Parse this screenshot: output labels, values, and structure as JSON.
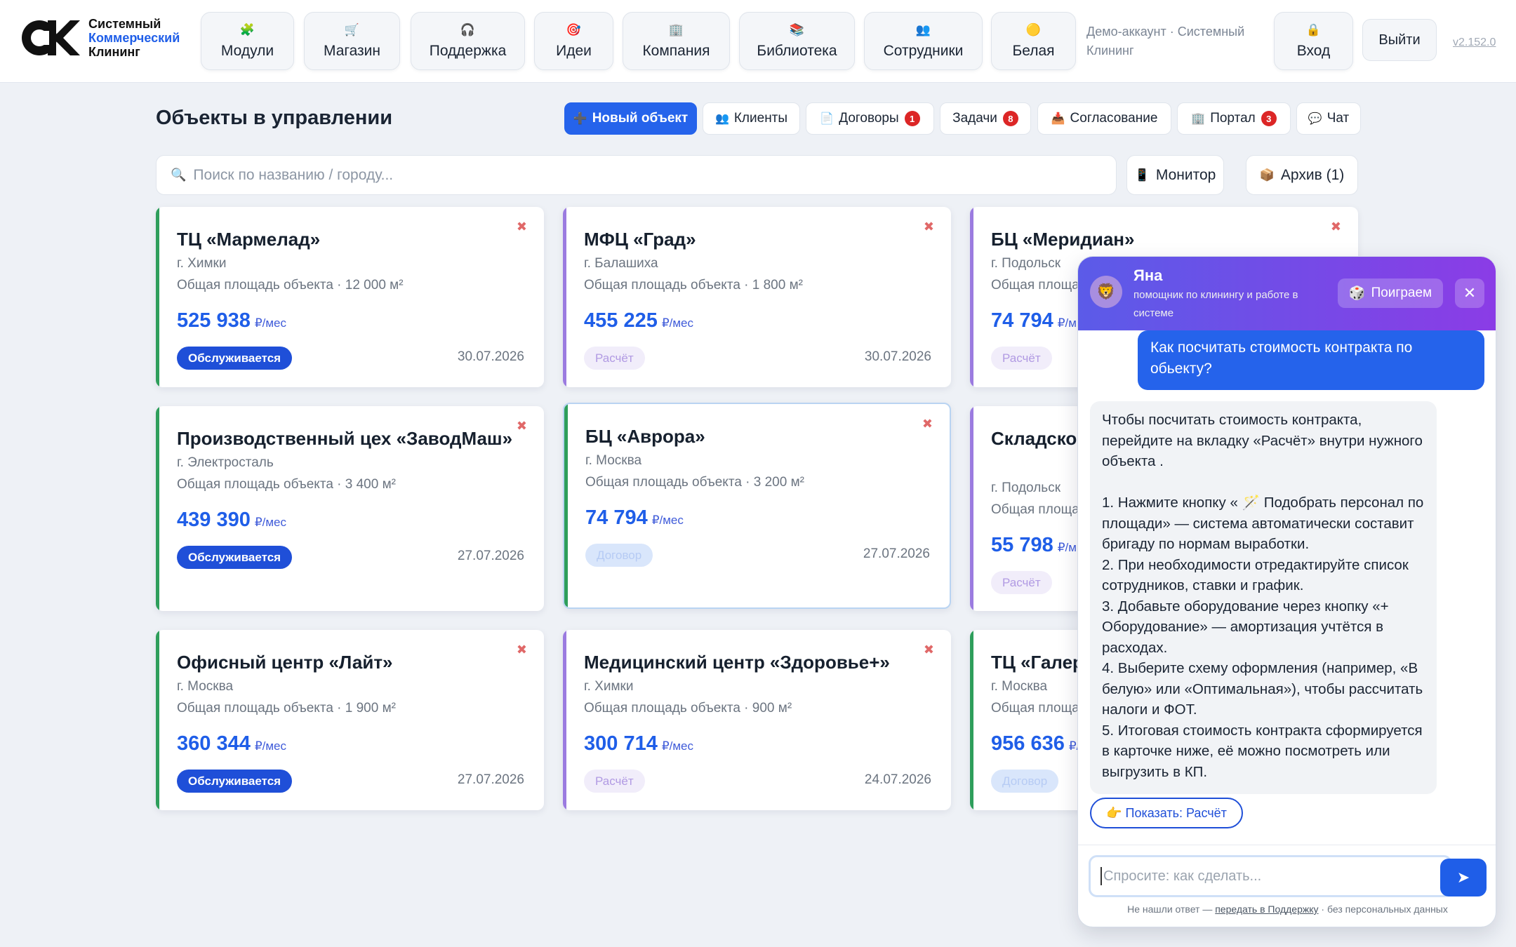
{
  "logo": {
    "line1": "Системный",
    "line2": "Коммерческий",
    "line3": "Клининг"
  },
  "nav": [
    {
      "label": "Модули",
      "icon": "🧩"
    },
    {
      "label": "Магазин",
      "icon": "🛒"
    },
    {
      "label": "Поддержка",
      "icon": "🎧"
    },
    {
      "label": "Идеи",
      "icon": "🎯"
    },
    {
      "label": "Компания",
      "icon": "🏢"
    },
    {
      "label": "Библиотека",
      "icon": "📚"
    },
    {
      "label": "Сотрудники",
      "icon": "👥"
    },
    {
      "label": "Белая",
      "icon": "🟡"
    }
  ],
  "account": {
    "demo_text": "Демо-аккаунт · Системный Клининг",
    "login_label": "Вход",
    "login_icon": "🔒",
    "logout_label": "Выйти",
    "version": "v2.152.0"
  },
  "page": {
    "title": "Объекты в управлении"
  },
  "actions": [
    {
      "label": "Новый объект",
      "icon": "➕"
    },
    {
      "label": "Клиенты",
      "icon": "👥"
    },
    {
      "label": "Договоры",
      "icon": "📄",
      "badge": "1"
    },
    {
      "label": "Задачи",
      "icon": "",
      "badge": "8"
    },
    {
      "label": "Согласование",
      "icon": "📥"
    },
    {
      "label": "Портал",
      "icon": "🏢",
      "badge": "3"
    },
    {
      "label": "Чат",
      "icon": "💬"
    }
  ],
  "search": {
    "placeholder": "Поиск по названию / городу...",
    "icon": "🔍"
  },
  "toolbar": {
    "monitor_label": "Монитор",
    "monitor_icon": "📱",
    "archive_label": "Архив (1)",
    "archive_icon": "📦"
  },
  "colors": {
    "accent": "#2563eb",
    "status_serviced": "#1f4fd8",
    "bar_green": "#2e9e5b",
    "bar_purple": "#9b7be0"
  },
  "cards": [
    {
      "title": "ТЦ «Мармелад»",
      "city": "г. Химки",
      "area": "Общая площадь объекта · 12 000 м²",
      "price": "525 938",
      "unit": "₽/мес",
      "status": "Обслуживается",
      "date": "30.07.2026"
    },
    {
      "title": "МФЦ «Град»",
      "city": "г. Балашиха",
      "area": "Общая площадь объекта · 1 800 м²",
      "price": "455 225",
      "unit": "₽/мес",
      "status": "Расчёт",
      "date": "30.07.2026"
    },
    {
      "title": "БЦ «Меридиан»",
      "city": "г. Подольск",
      "area": "Общая площа",
      "price": "74 794",
      "unit": "₽/м",
      "status": "Расчёт",
      "date": ""
    },
    {
      "title": "Производственный цех «ЗаводМаш»",
      "city": "г. Электросталь",
      "area": "Общая площадь объекта · 3 400 м²",
      "price": "439 390",
      "unit": "₽/мес",
      "status": "Обслуживается",
      "date": "27.07.2026"
    },
    {
      "title": "БЦ «Аврора»",
      "city": "г. Москва",
      "area": "Общая площадь объекта · 3 200 м²",
      "price": "74 794",
      "unit": "₽/мес",
      "status": "Договор",
      "date": "27.07.2026"
    },
    {
      "title": "Складско Парк»",
      "city": "г. Подольск",
      "area": "Общая площа",
      "price": "55 798",
      "unit": "₽/м",
      "status": "Расчёт",
      "date": ""
    },
    {
      "title": "Офисный центр «Лайт»",
      "city": "г. Москва",
      "area": "Общая площадь объекта · 1 900 м²",
      "price": "360 344",
      "unit": "₽/мес",
      "status": "Обслуживается",
      "date": "27.07.2026"
    },
    {
      "title": "Медицинский центр «Здоровье+»",
      "city": "г. Химки",
      "area": "Общая площадь объекта · 900 м²",
      "price": "300 714",
      "unit": "₽/мес",
      "status": "Расчёт",
      "date": "24.07.2026"
    },
    {
      "title": "ТЦ «Галер",
      "city": "г. Москва",
      "area": "Общая площа",
      "price": "956 636",
      "unit": "₽/м",
      "status": "Договор",
      "date": ""
    }
  ],
  "chat": {
    "name": "Яна",
    "subtitle": "помощник по клинингу и работе в системе",
    "avatar_icon": "🦁",
    "play_label": "Поиграем",
    "play_icon": "🎲",
    "close_icon": "✕",
    "user_message": "Как посчитать стоимость контракта по обьекту?",
    "bot_message": "Чтобы посчитать стоимость контракта, перейдите на вкладку «Расчёт» внутри нужного объекта .\n\n1. Нажмите кнопку « 🪄 Подобрать персонал по площади» — система автоматически составит бригаду по нормам выработки.\n2. При необходимости отредактируйте список сотрудников, ставки и график.\n3. Добавьте оборудование через кнопку «+ Оборудование» — амортизация учтётся в расходах.\n4. Выберите схему оформления (например, «В белую» или «Оптимальная»), чтобы рассчитать налоги и ФОТ.\n5. Итоговая стоимость контракта сформируется в карточке ниже, её можно посмотреть или выгрузить в КП.",
    "show_button": "👉 Показать: Расчёт",
    "input_placeholder": "Спросите: как сделать...",
    "send_icon": "➤",
    "footer_prefix": "Не нашли ответ — ",
    "footer_link": "передать в Поддержку",
    "footer_suffix": " · без персональных данных"
  }
}
